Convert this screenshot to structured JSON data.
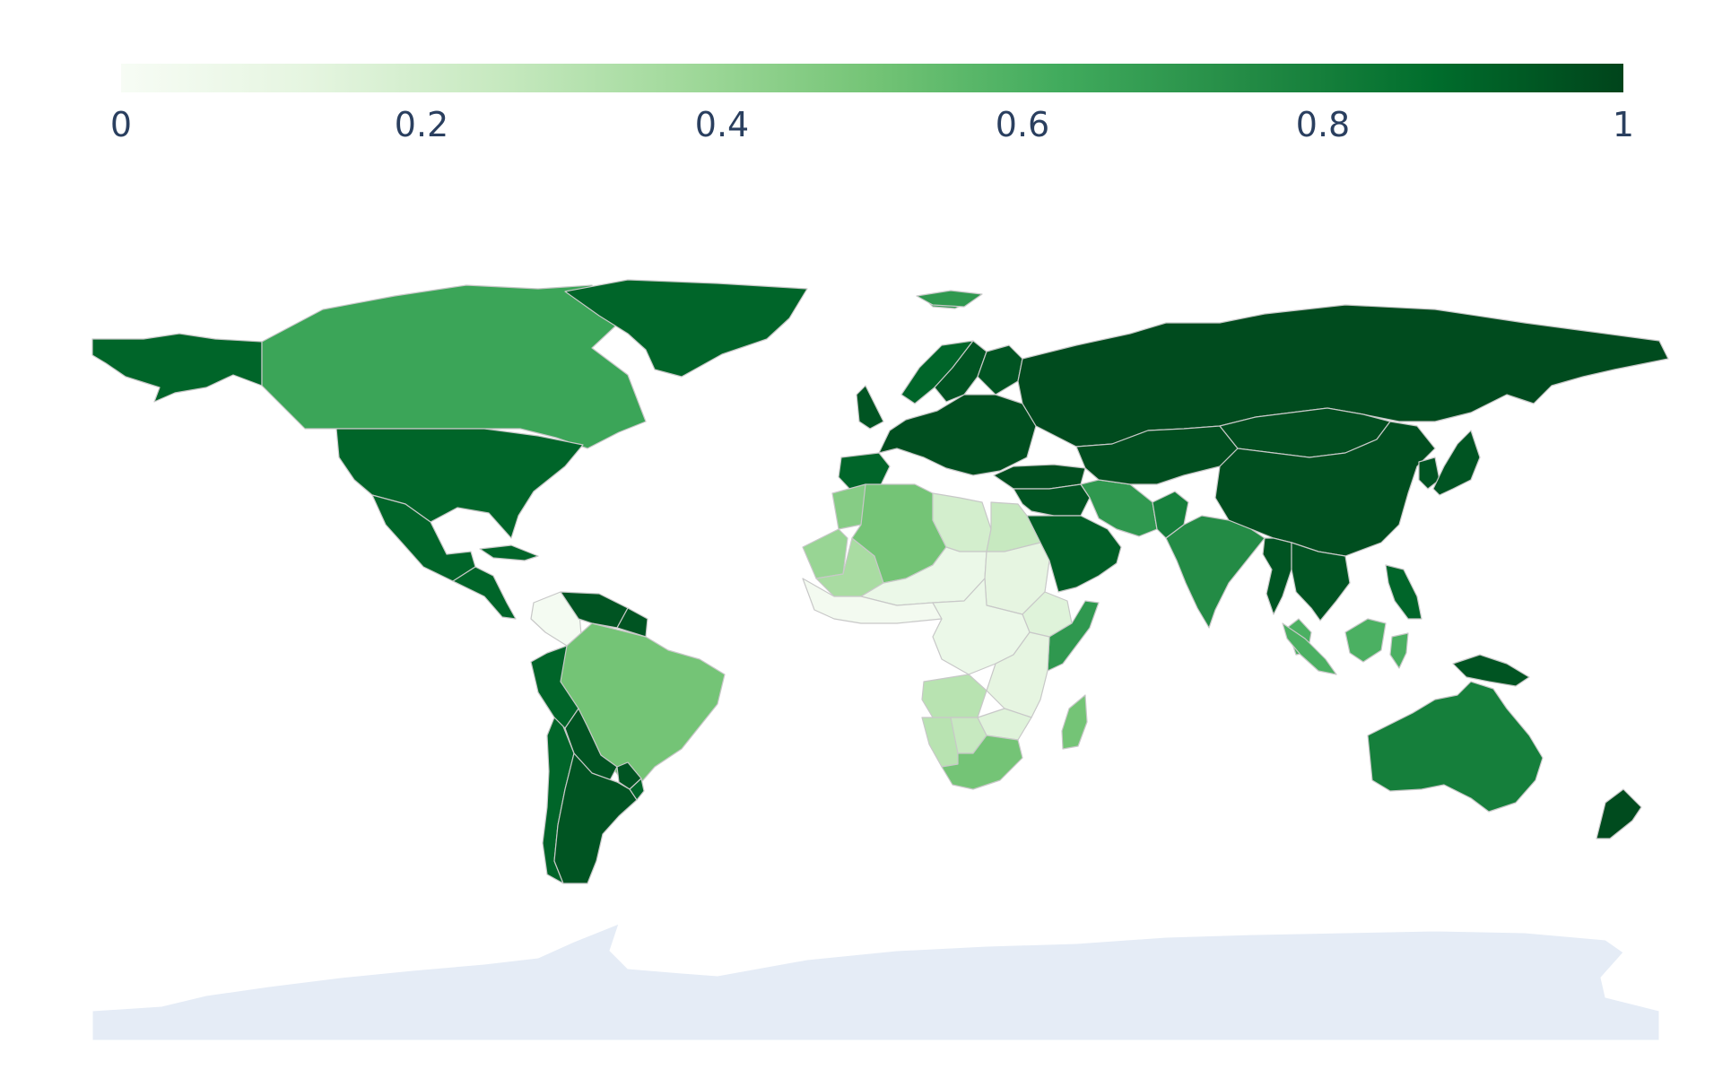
{
  "colorscale": {
    "name": "Greens",
    "stops": [
      "#f7fcf5",
      "#e5f5e0",
      "#c7e9c0",
      "#a1d99b",
      "#74c476",
      "#41ab5d",
      "#238b45",
      "#006d2c",
      "#00441b"
    ],
    "range": [
      0,
      1
    ],
    "ticks": [
      "0",
      "0.2",
      "0.4",
      "0.6",
      "0.8",
      "1"
    ]
  },
  "colors": {
    "background": "#ffffff",
    "no_data_land": "#e5ecf6",
    "tick_text": "#2a3f5f",
    "border": "#c8c8c8"
  },
  "choropleth": [
    {
      "region": "Alaska",
      "value": 0.9
    },
    {
      "region": "Canada",
      "value": 0.65
    },
    {
      "region": "Greenland",
      "value": 0.9
    },
    {
      "region": "United States",
      "value": 0.9
    },
    {
      "region": "Mexico",
      "value": 0.9
    },
    {
      "region": "Central America",
      "value": 0.9
    },
    {
      "region": "Cuba",
      "value": 0.9
    },
    {
      "region": "Colombia",
      "value": 0.02
    },
    {
      "region": "Venezuela",
      "value": 0.95
    },
    {
      "region": "Guyana",
      "value": 0.95
    },
    {
      "region": "Brazil",
      "value": 0.5
    },
    {
      "region": "Peru",
      "value": 0.9
    },
    {
      "region": "Bolivia",
      "value": 0.95
    },
    {
      "region": "Paraguay",
      "value": 0.95
    },
    {
      "region": "Uruguay",
      "value": 0.9
    },
    {
      "region": "Chile",
      "value": 0.9
    },
    {
      "region": "Argentina",
      "value": 0.95
    },
    {
      "region": "Iceland",
      "value": 0.7
    },
    {
      "region": "United Kingdom",
      "value": 0.95
    },
    {
      "region": "Iberia",
      "value": 0.9
    },
    {
      "region": "Europe",
      "value": 0.97
    },
    {
      "region": "Norway",
      "value": 0.9
    },
    {
      "region": "Sweden",
      "value": 0.95
    },
    {
      "region": "Finland",
      "value": 0.95
    },
    {
      "region": "Russia",
      "value": 0.98
    },
    {
      "region": "Svalbard",
      "value": 0.7
    },
    {
      "region": "Turkey",
      "value": 0.97
    },
    {
      "region": "Morocco",
      "value": 0.45
    },
    {
      "region": "Western Sahara",
      "value": 0.4
    },
    {
      "region": "Mauritania",
      "value": 0.35
    },
    {
      "region": "Algeria",
      "value": 0.5
    },
    {
      "region": "Libya",
      "value": 0.2
    },
    {
      "region": "Egypt",
      "value": 0.25
    },
    {
      "region": "Sahel",
      "value": 0.08
    },
    {
      "region": "West Africa",
      "value": 0.03
    },
    {
      "region": "Sudan",
      "value": 0.12
    },
    {
      "region": "Ethiopia",
      "value": 0.15
    },
    {
      "region": "Somalia",
      "value": 0.7
    },
    {
      "region": "Central Africa",
      "value": 0.08
    },
    {
      "region": "East Africa",
      "value": 0.12
    },
    {
      "region": "Angola",
      "value": 0.3
    },
    {
      "region": "Namibia",
      "value": 0.3
    },
    {
      "region": "Botswana",
      "value": 0.25
    },
    {
      "region": "Zimbabwe",
      "value": 0.15
    },
    {
      "region": "South Africa",
      "value": 0.5
    },
    {
      "region": "Madagascar",
      "value": 0.5
    },
    {
      "region": "Middle East",
      "value": 0.95
    },
    {
      "region": "Saudi Arabia",
      "value": 0.92
    },
    {
      "region": "Iran",
      "value": 0.7
    },
    {
      "region": "Central Asia",
      "value": 0.97
    },
    {
      "region": "Pakistan",
      "value": 0.8
    },
    {
      "region": "India",
      "value": 0.75
    },
    {
      "region": "Mongolia",
      "value": 0.97
    },
    {
      "region": "China",
      "value": 0.97
    },
    {
      "region": "Korea",
      "value": 0.95
    },
    {
      "region": "Japan",
      "value": 0.95
    },
    {
      "region": "Myanmar",
      "value": 0.95
    },
    {
      "region": "Indochina",
      "value": 0.95
    },
    {
      "region": "Malaysia",
      "value": 0.6
    },
    {
      "region": "Philippines",
      "value": 0.9
    },
    {
      "region": "Sumatra",
      "value": 0.6
    },
    {
      "region": "Borneo",
      "value": 0.6
    },
    {
      "region": "Sulawesi",
      "value": 0.6
    },
    {
      "region": "Papua New Guinea",
      "value": 0.95
    },
    {
      "region": "Australia",
      "value": 0.8
    },
    {
      "region": "New Zealand",
      "value": 0.98
    },
    {
      "region": "Antarctica",
      "value": null
    }
  ]
}
